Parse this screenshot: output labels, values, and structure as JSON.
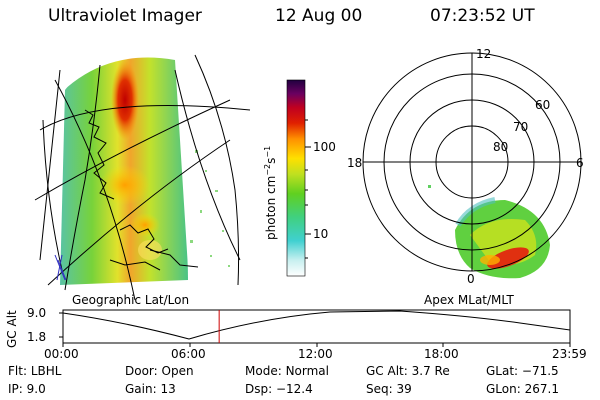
{
  "header": {
    "title": "Ultraviolet Imager",
    "date": "12 Aug 00",
    "time": "07:23:52 UT"
  },
  "colorbar": {
    "unit_main": "photon cm",
    "unit_exp1": "−2",
    "unit_mid": "s",
    "unit_exp2": "−1",
    "tick_high": "100",
    "tick_low": "10"
  },
  "polar": {
    "mlt_labels": [
      "12",
      "18",
      "6",
      "0"
    ],
    "lat_labels": [
      "60",
      "70",
      "80"
    ]
  },
  "projection_labels": {
    "left": "Geographic Lat/Lon",
    "right": "Apex MLat/MLT"
  },
  "altitude_plot": {
    "ylabel": "GC Alt",
    "ytick_high": "9.0",
    "ytick_low": "1.8",
    "xticks": [
      "00:00",
      "06:00",
      "12:00",
      "18:00",
      "23:59"
    ],
    "current_time_fraction": 0.308
  },
  "info": {
    "filter_label": "Flt:",
    "filter_value": "LBHL",
    "ip_label": "IP:",
    "ip_value": "9.0",
    "door_label": "Door:",
    "door_value": "Open",
    "gain_label": "Gain:",
    "gain_value": "13",
    "mode_label": "Mode:",
    "mode_value": "Normal",
    "dsp_label": "Dsp:",
    "dsp_value": "−12.4",
    "gcalt_label": "GC Alt:",
    "gcalt_value": "3.7 Re",
    "seq_label": "Seq:",
    "seq_value": "39",
    "glat_label": "GLat:",
    "glat_value": "−71.5",
    "glon_label": "GLon:",
    "glon_value": "267.1"
  },
  "colors": {
    "cursor_line": "#cc0000"
  }
}
